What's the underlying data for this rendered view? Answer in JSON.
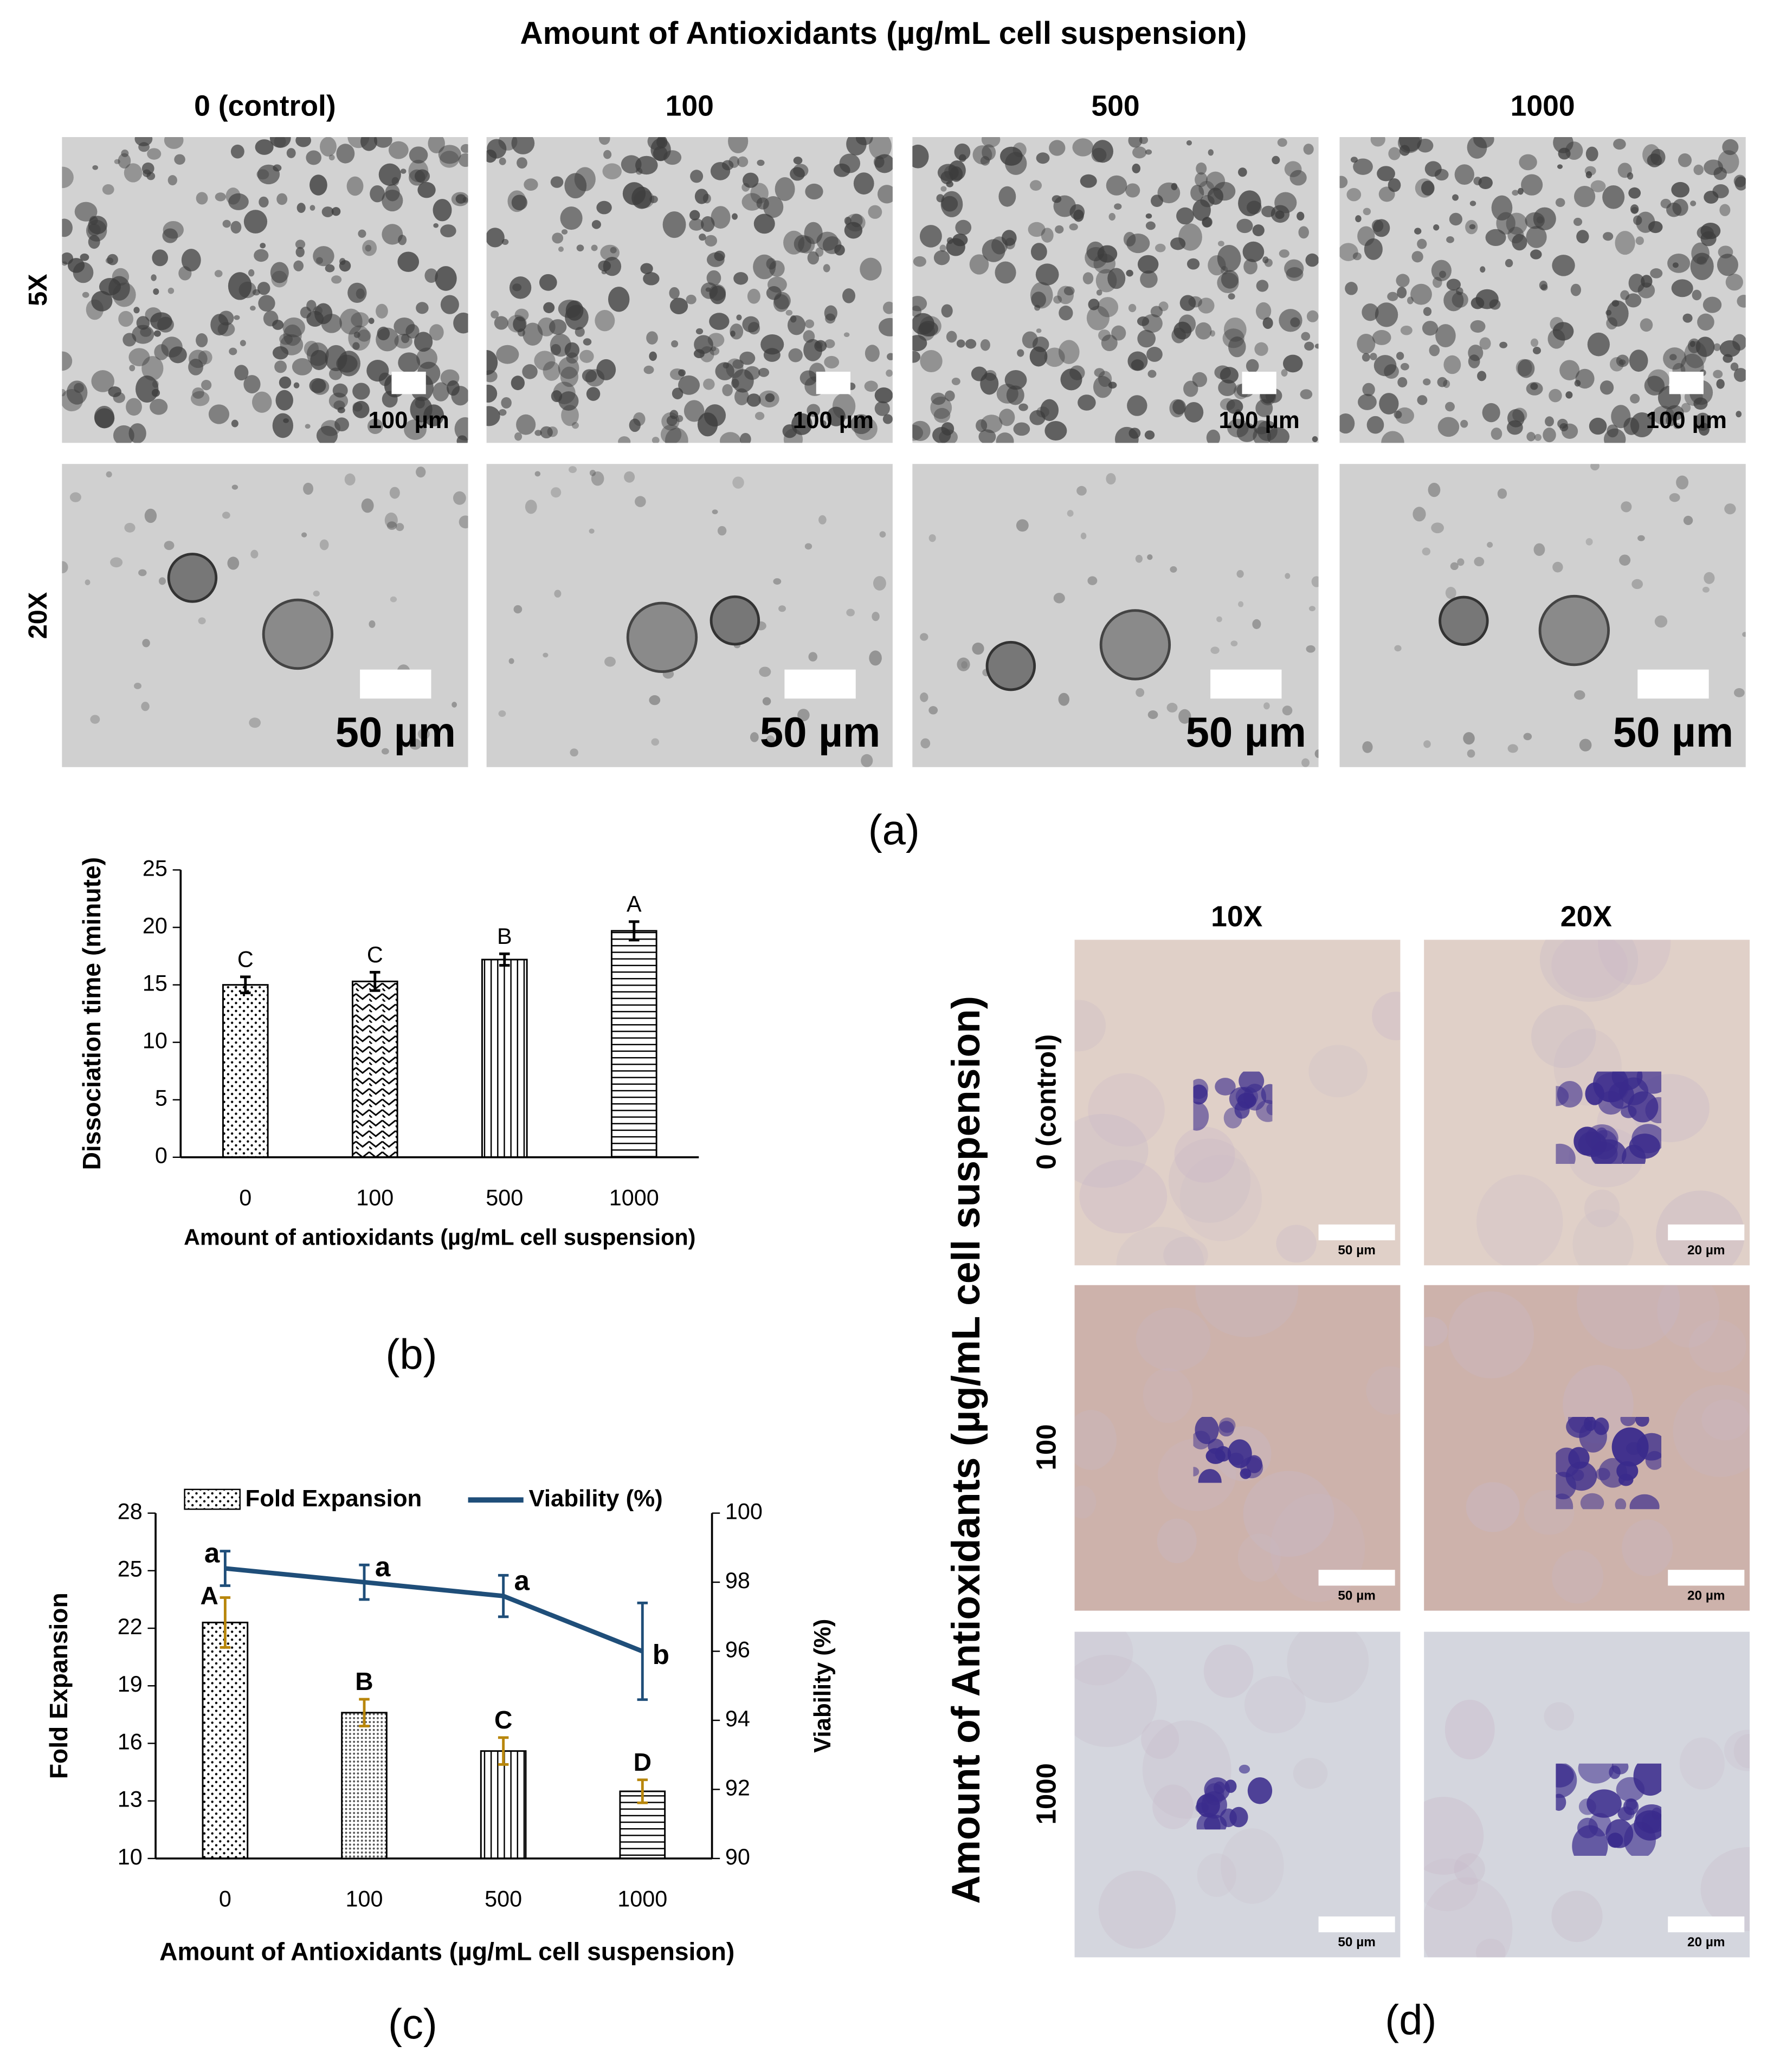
{
  "panel_a": {
    "title": "Amount of Antioxidants (µg/mL cell suspension)",
    "columns": [
      "0 (control)",
      "100",
      "500",
      "1000"
    ],
    "rows": [
      "5X",
      "20X"
    ],
    "scale_bars": [
      "100 µm",
      "50 µm"
    ],
    "label": "(a)"
  },
  "chart_data": [
    {
      "type": "bar",
      "label": "(b)",
      "ylabel": "Dissociation time (minute)",
      "xlabel": "Amount of antioxidants (µg/mL cell suspension)",
      "categories": [
        "0",
        "100",
        "500",
        "1000"
      ],
      "values": [
        15.0,
        15.3,
        17.2,
        19.7
      ],
      "errors": [
        0.7,
        0.8,
        0.5,
        0.8
      ],
      "annotations": [
        "C",
        "C",
        "B",
        "A"
      ],
      "patterns": [
        "dots",
        "zigzag",
        "vertical",
        "horizontal"
      ],
      "color": "#000000",
      "ylim": [
        0,
        25
      ],
      "yticks": [
        0,
        5,
        10,
        15,
        20,
        25
      ]
    },
    {
      "type": "bar-line",
      "label": "(c)",
      "ylabel": "Fold Expansion",
      "y2label": "Viability (%)",
      "xlabel": "Amount of Antioxidants (µg/mL cell suspension)",
      "categories": [
        "0",
        "100",
        "500",
        "1000"
      ],
      "legend": "top",
      "series": [
        {
          "name": "Fold Expansion",
          "type": "bar",
          "color": "#000000",
          "error_color": "#b8860b",
          "patterns": [
            "dots",
            "finedots",
            "vertical",
            "horizontal"
          ],
          "values": [
            22.3,
            17.6,
            15.6,
            13.5
          ],
          "errors": [
            1.3,
            0.7,
            0.7,
            0.6
          ],
          "annotations": [
            "A",
            "B",
            "C",
            "D"
          ]
        },
        {
          "name": "Viability (%)",
          "type": "line",
          "axis": "y2",
          "color": "#1f4e79",
          "values": [
            98.4,
            98.0,
            97.6,
            96.0
          ],
          "errors": [
            0.5,
            0.5,
            0.6,
            1.4
          ],
          "annotations": [
            "a",
            "a",
            "a",
            "b"
          ]
        }
      ],
      "ylim": [
        10,
        28
      ],
      "yticks": [
        10,
        13,
        16,
        19,
        22,
        25,
        28
      ],
      "y2lim": [
        90,
        100
      ],
      "y2ticks": [
        90,
        92,
        94,
        96,
        98,
        100
      ]
    }
  ],
  "panel_d": {
    "columns": [
      "10X",
      "20X"
    ],
    "rows": [
      "0 (control)",
      "100",
      "1000"
    ],
    "axis_label": "Amount of Antioxidants (µg/mL cell suspension)",
    "scale_bars": [
      "50 µm",
      "20 µm"
    ],
    "label": "(d)"
  }
}
